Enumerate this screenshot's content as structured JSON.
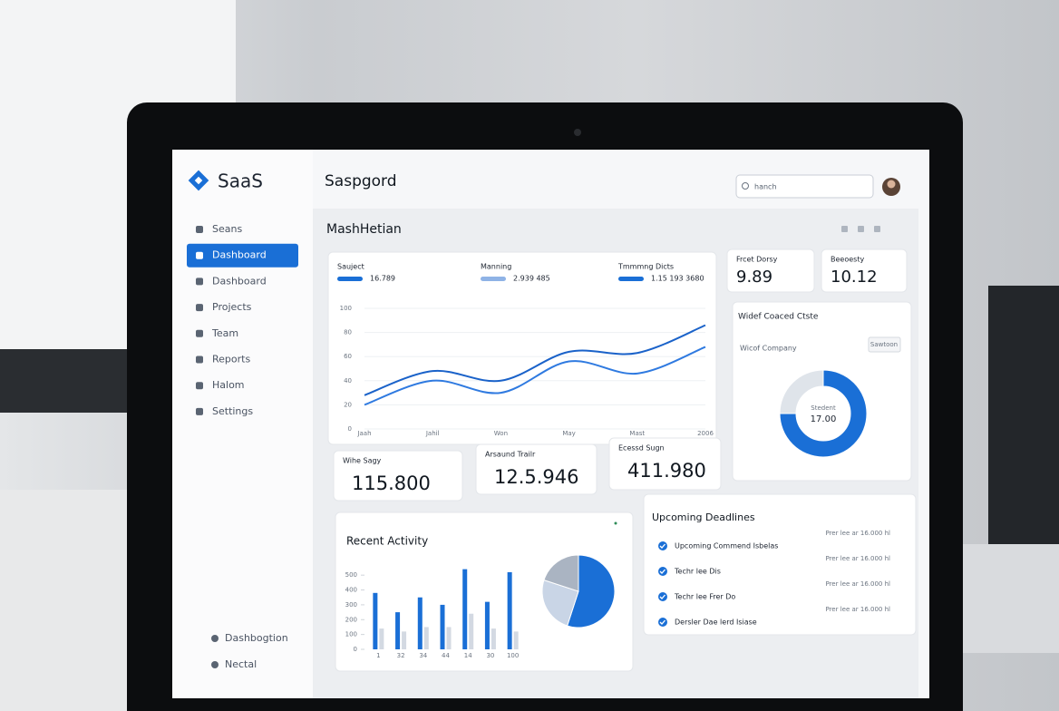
{
  "sidebar": {
    "brand": "SaaS",
    "items": [
      "Seans",
      "Dashboard",
      "Dashboard",
      "Projects",
      "Team",
      "Reports",
      "Halom",
      "Settings"
    ],
    "active": 1,
    "footer": [
      "Dashbogtion",
      "Nectal"
    ]
  },
  "header": {
    "title": "Saspgord",
    "search": "hanch"
  },
  "page_title": "MashHetian",
  "summary": [
    {
      "label": "Sauject",
      "value": "16.789",
      "color": "#1a6fd6"
    },
    {
      "label": "Manning",
      "value": "2.939 485",
      "color": "#8fb3e6"
    },
    {
      "label": "Tmmmng Dicts",
      "value": "1.15 193 3680",
      "color": "#1a6fd6"
    }
  ],
  "stats": [
    {
      "label": "Frcet Dorsy",
      "value": "9.89"
    },
    {
      "label": "Beeoesty",
      "value": "10.12"
    },
    {
      "label": "Wihe Sagy",
      "value": "115.800"
    },
    {
      "label": "Arsaund Trailr",
      "value": "12.5.946"
    },
    {
      "label": "Ecessd Sugn",
      "value": "411.980"
    }
  ],
  "donut_card": {
    "title": "Widef Coaced Ctste",
    "subtitle": "Wicof Company",
    "button": "Sawtoon"
  },
  "activity": {
    "title": "Recent Activity"
  },
  "deadlines": {
    "title": "Upcoming Deadlines",
    "items": [
      {
        "text": "Upcoming Commend Isbelas",
        "date": "Prer lee ar 16.000 hl"
      },
      {
        "text": "Techr lee Dis",
        "date": "Prer lee ar 16.000 hl"
      },
      {
        "text": "Techr lee Frer Do",
        "date": "Prer lee ar 16.000 hl"
      },
      {
        "text": "Dersler Dae lerd Isiase",
        "date": "Prer lee ar 16.000 hl"
      }
    ]
  },
  "chart_data": [
    {
      "type": "line",
      "categories": [
        "Jaah",
        "Jahil",
        "Won",
        "May",
        "Mast",
        "2006"
      ],
      "series": [
        {
          "color": "#1a62c9",
          "values": [
            28,
            48,
            40,
            64,
            63,
            86
          ]
        },
        {
          "color": "#2f7ae0",
          "values": [
            20,
            40,
            30,
            56,
            46,
            68
          ]
        }
      ],
      "ylim": [
        0,
        100
      ],
      "yticks": [
        0,
        20,
        40,
        60,
        80,
        100
      ],
      "grid": true
    },
    {
      "type": "donut",
      "center_label": "Stedent",
      "center_value": "17.00",
      "values": [
        75,
        25
      ],
      "colors": [
        "#1a6fd6",
        "#dfe4ea"
      ]
    },
    {
      "type": "bar",
      "categories": [
        "1",
        "32",
        "34",
        "44",
        "14",
        "30",
        "100"
      ],
      "series": [
        {
          "color": "#1a6fd6",
          "values": [
            380,
            250,
            350,
            300,
            540,
            320,
            520
          ]
        },
        {
          "color": "#d3d9e2",
          "values": [
            140,
            120,
            150,
            150,
            240,
            140,
            120
          ]
        }
      ],
      "ylim": [
        0,
        550
      ],
      "yticks": [
        0,
        100,
        200,
        300,
        400,
        500
      ]
    },
    {
      "type": "pie",
      "values": [
        55,
        25,
        20
      ],
      "colors": [
        "#1a6fd6",
        "#c9d5e6",
        "#aab4c2"
      ]
    }
  ]
}
